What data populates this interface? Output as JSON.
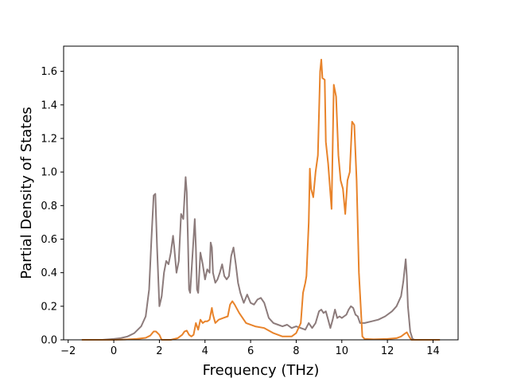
{
  "chart_data": {
    "type": "line",
    "title": "",
    "xlabel": "Frequency (THz)",
    "ylabel": "Partial Density of States",
    "xlim": [
      -2.2,
      15.1
    ],
    "ylim": [
      0.0,
      1.75
    ],
    "xticks": [
      -2,
      0,
      2,
      4,
      6,
      8,
      10,
      12,
      14
    ],
    "yticks": [
      0.0,
      0.2,
      0.4,
      0.6,
      0.8,
      1.0,
      1.2,
      1.4,
      1.6
    ],
    "xtick_labels": [
      "−2",
      "0",
      "2",
      "4",
      "6",
      "8",
      "10",
      "12",
      "14"
    ],
    "ytick_labels": [
      "0.0",
      "0.2",
      "0.4",
      "0.6",
      "0.8",
      "1.0",
      "1.2",
      "1.4",
      "1.6"
    ],
    "grid": false,
    "series": [
      {
        "color": "#8c7b7b",
        "x": [
          -1.4,
          -0.5,
          0.0,
          0.3,
          0.6,
          0.9,
          1.2,
          1.4,
          1.55,
          1.65,
          1.75,
          1.82,
          1.9,
          2.0,
          2.1,
          2.2,
          2.3,
          2.4,
          2.5,
          2.6,
          2.65,
          2.75,
          2.85,
          2.95,
          3.05,
          3.15,
          3.2,
          3.25,
          3.3,
          3.35,
          3.45,
          3.55,
          3.6,
          3.65,
          3.7,
          3.8,
          3.9,
          4.0,
          4.1,
          4.2,
          4.25,
          4.3,
          4.35,
          4.45,
          4.55,
          4.65,
          4.75,
          4.85,
          4.95,
          5.05,
          5.15,
          5.25,
          5.35,
          5.45,
          5.55,
          5.7,
          5.85,
          6.0,
          6.15,
          6.3,
          6.45,
          6.6,
          6.8,
          7.0,
          7.2,
          7.4,
          7.6,
          7.8,
          8.0,
          8.2,
          8.4,
          8.55,
          8.7,
          8.85,
          9.0,
          9.1,
          9.2,
          9.3,
          9.4,
          9.5,
          9.6,
          9.7,
          9.8,
          9.9,
          10.0,
          10.1,
          10.2,
          10.3,
          10.4,
          10.5,
          10.6,
          10.7,
          10.8,
          11.0,
          11.3,
          11.6,
          11.9,
          12.2,
          12.4,
          12.6,
          12.7,
          12.8,
          12.85,
          12.9,
          13.0,
          13.1,
          13.2,
          14.3
        ],
        "values": [
          0.0,
          0.0,
          0.005,
          0.01,
          0.02,
          0.04,
          0.08,
          0.14,
          0.3,
          0.6,
          0.86,
          0.87,
          0.55,
          0.2,
          0.26,
          0.4,
          0.47,
          0.45,
          0.52,
          0.62,
          0.55,
          0.4,
          0.47,
          0.75,
          0.72,
          0.97,
          0.88,
          0.6,
          0.3,
          0.28,
          0.5,
          0.72,
          0.55,
          0.3,
          0.28,
          0.52,
          0.45,
          0.36,
          0.42,
          0.4,
          0.58,
          0.55,
          0.4,
          0.34,
          0.36,
          0.4,
          0.45,
          0.38,
          0.36,
          0.38,
          0.5,
          0.55,
          0.45,
          0.34,
          0.28,
          0.22,
          0.27,
          0.22,
          0.21,
          0.24,
          0.25,
          0.22,
          0.13,
          0.1,
          0.09,
          0.08,
          0.09,
          0.07,
          0.08,
          0.07,
          0.06,
          0.1,
          0.07,
          0.1,
          0.17,
          0.18,
          0.16,
          0.17,
          0.12,
          0.07,
          0.12,
          0.18,
          0.13,
          0.14,
          0.13,
          0.14,
          0.15,
          0.18,
          0.2,
          0.19,
          0.15,
          0.14,
          0.1,
          0.1,
          0.11,
          0.12,
          0.14,
          0.17,
          0.2,
          0.26,
          0.35,
          0.48,
          0.38,
          0.2,
          0.05,
          0.005,
          0.0,
          0.0
        ]
      },
      {
        "color": "#e8832a",
        "x": [
          -1.4,
          0.0,
          0.5,
          1.0,
          1.4,
          1.6,
          1.75,
          1.85,
          2.0,
          2.1,
          2.5,
          2.8,
          3.0,
          3.1,
          3.2,
          3.3,
          3.4,
          3.5,
          3.6,
          3.7,
          3.8,
          3.9,
          4.0,
          4.1,
          4.2,
          4.3,
          4.35,
          4.45,
          4.6,
          4.8,
          5.0,
          5.1,
          5.2,
          5.3,
          5.5,
          5.8,
          6.2,
          6.6,
          7.0,
          7.4,
          7.8,
          8.0,
          8.2,
          8.3,
          8.4,
          8.45,
          8.55,
          8.6,
          8.65,
          8.75,
          8.85,
          8.95,
          9.05,
          9.1,
          9.15,
          9.25,
          9.3,
          9.4,
          9.55,
          9.65,
          9.75,
          9.85,
          9.95,
          10.05,
          10.15,
          10.25,
          10.35,
          10.45,
          10.55,
          10.65,
          10.75,
          10.9,
          11.0,
          11.4,
          12.0,
          12.4,
          12.6,
          12.75,
          12.85,
          12.95,
          13.05,
          14.3
        ],
        "values": [
          0.0,
          0.0,
          0.002,
          0.005,
          0.012,
          0.025,
          0.05,
          0.05,
          0.03,
          0.0,
          0.0,
          0.01,
          0.03,
          0.05,
          0.055,
          0.03,
          0.02,
          0.03,
          0.1,
          0.06,
          0.12,
          0.1,
          0.11,
          0.11,
          0.12,
          0.19,
          0.15,
          0.1,
          0.12,
          0.13,
          0.14,
          0.21,
          0.23,
          0.21,
          0.16,
          0.1,
          0.08,
          0.07,
          0.04,
          0.02,
          0.02,
          0.04,
          0.1,
          0.28,
          0.34,
          0.38,
          0.7,
          1.02,
          0.9,
          0.85,
          1.0,
          1.1,
          1.6,
          1.67,
          1.56,
          1.55,
          1.18,
          1.05,
          0.78,
          1.52,
          1.45,
          1.1,
          0.95,
          0.9,
          0.75,
          0.95,
          1.0,
          1.3,
          1.28,
          0.95,
          0.4,
          0.02,
          0.005,
          0.003,
          0.005,
          0.01,
          0.02,
          0.035,
          0.045,
          0.02,
          0.0,
          0.0
        ]
      }
    ]
  }
}
